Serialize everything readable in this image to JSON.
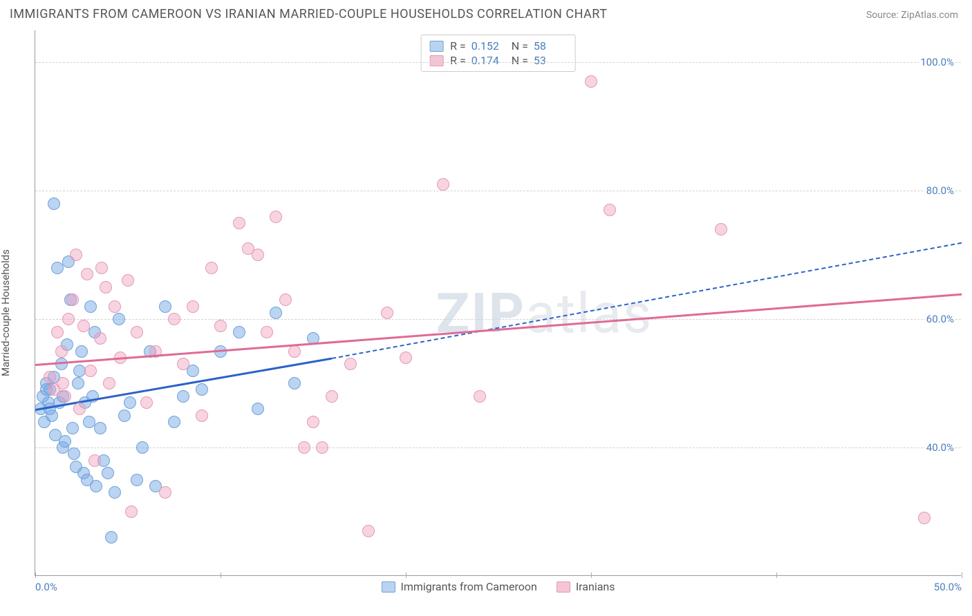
{
  "title": "IMMIGRANTS FROM CAMEROON VS IRANIAN MARRIED-COUPLE HOUSEHOLDS CORRELATION CHART",
  "source_label": "Source:",
  "source_value": "ZipAtlas.com",
  "ylabel": "Married-couple Households",
  "watermark_bold": "ZIP",
  "watermark_rest": "atlas",
  "xlim": [
    0,
    50
  ],
  "ylim": [
    20,
    105
  ],
  "yticks": [
    40,
    60,
    80,
    100
  ],
  "ytick_labels": [
    "40.0%",
    "60.0%",
    "80.0%",
    "100.0%"
  ],
  "xticks": [
    0,
    10,
    20,
    30,
    40,
    50
  ],
  "xtick_labels": [
    "0.0%",
    "",
    "",
    "",
    "",
    "50.0%"
  ],
  "grid_color": "#d0d0d0",
  "colors": {
    "blue_fill": "rgba(120,170,230,0.5)",
    "blue_stroke": "#6fa0d8",
    "blue_swatch_fill": "#b9d4f0",
    "blue_swatch_stroke": "#6fa0d8",
    "blue_trend": "#2a62c9",
    "pink_fill": "rgba(240,160,190,0.45)",
    "pink_stroke": "#e498b2",
    "pink_swatch_fill": "#f5c5d5",
    "pink_swatch_stroke": "#e498b2",
    "pink_trend": "#e06a93",
    "value_text": "#4a7ebb"
  },
  "legend_top": [
    {
      "swatch": "blue",
      "r_label": "R =",
      "r": "0.152",
      "n_label": "N =",
      "n": "58"
    },
    {
      "swatch": "pink",
      "r_label": "R =",
      "r": "0.174",
      "n_label": "N =",
      "n": "53"
    }
  ],
  "legend_bottom": [
    {
      "swatch": "blue",
      "label": "Immigrants from Cameroon"
    },
    {
      "swatch": "pink",
      "label": "Iranians"
    }
  ],
  "series": [
    {
      "name": "cameroon",
      "color_key": "blue",
      "trend": {
        "x0": 0,
        "y0": 46,
        "x_solid_end": 16,
        "y_solid_end": 54,
        "x_dash_end": 50,
        "y_dash_end": 72
      },
      "points": [
        [
          0.3,
          46
        ],
        [
          0.4,
          48
        ],
        [
          0.5,
          44
        ],
        [
          0.6,
          50
        ],
        [
          0.7,
          47
        ],
        [
          0.8,
          49
        ],
        [
          0.9,
          45
        ],
        [
          1.0,
          78
        ],
        [
          1.1,
          42
        ],
        [
          1.2,
          68
        ],
        [
          1.3,
          47
        ],
        [
          1.4,
          53
        ],
        [
          1.5,
          40
        ],
        [
          1.6,
          41
        ],
        [
          1.7,
          56
        ],
        [
          1.8,
          69
        ],
        [
          1.9,
          63
        ],
        [
          2.0,
          43
        ],
        [
          2.1,
          39
        ],
        [
          2.2,
          37
        ],
        [
          2.3,
          50
        ],
        [
          2.5,
          55
        ],
        [
          2.6,
          36
        ],
        [
          2.7,
          47
        ],
        [
          2.8,
          35
        ],
        [
          2.9,
          44
        ],
        [
          3.0,
          62
        ],
        [
          3.2,
          58
        ],
        [
          3.3,
          34
        ],
        [
          3.5,
          43
        ],
        [
          3.7,
          38
        ],
        [
          3.9,
          36
        ],
        [
          4.1,
          26
        ],
        [
          4.3,
          33
        ],
        [
          4.5,
          60
        ],
        [
          4.8,
          45
        ],
        [
          5.1,
          47
        ],
        [
          5.5,
          35
        ],
        [
          5.8,
          40
        ],
        [
          6.2,
          55
        ],
        [
          6.5,
          34
        ],
        [
          7.0,
          62
        ],
        [
          7.5,
          44
        ],
        [
          8.0,
          48
        ],
        [
          8.5,
          52
        ],
        [
          9.0,
          49
        ],
        [
          10.0,
          55
        ],
        [
          11.0,
          58
        ],
        [
          12.0,
          46
        ],
        [
          13.0,
          61
        ],
        [
          14.0,
          50
        ],
        [
          15.0,
          57
        ],
        [
          3.1,
          48
        ],
        [
          2.4,
          52
        ],
        [
          1.0,
          51
        ],
        [
          0.6,
          49
        ],
        [
          0.8,
          46
        ],
        [
          1.5,
          48
        ]
      ]
    },
    {
      "name": "iranians",
      "color_key": "pink",
      "trend": {
        "x0": 0,
        "y0": 53,
        "x_solid_end": 50,
        "y_solid_end": 64
      },
      "points": [
        [
          0.8,
          51
        ],
        [
          1.0,
          49
        ],
        [
          1.2,
          58
        ],
        [
          1.4,
          55
        ],
        [
          1.6,
          48
        ],
        [
          1.8,
          60
        ],
        [
          2.0,
          63
        ],
        [
          2.2,
          70
        ],
        [
          2.4,
          46
        ],
        [
          2.6,
          59
        ],
        [
          2.8,
          67
        ],
        [
          3.0,
          52
        ],
        [
          3.2,
          38
        ],
        [
          3.5,
          57
        ],
        [
          3.8,
          65
        ],
        [
          4.0,
          50
        ],
        [
          4.3,
          62
        ],
        [
          4.6,
          54
        ],
        [
          5.0,
          66
        ],
        [
          5.5,
          58
        ],
        [
          6.0,
          47
        ],
        [
          6.5,
          55
        ],
        [
          7.0,
          33
        ],
        [
          7.5,
          60
        ],
        [
          8.0,
          53
        ],
        [
          8.5,
          62
        ],
        [
          9.0,
          45
        ],
        [
          10.0,
          59
        ],
        [
          11.0,
          75
        ],
        [
          11.5,
          71
        ],
        [
          12.0,
          70
        ],
        [
          12.5,
          58
        ],
        [
          13.0,
          76
        ],
        [
          13.5,
          63
        ],
        [
          14.0,
          55
        ],
        [
          14.5,
          40
        ],
        [
          15.0,
          44
        ],
        [
          15.5,
          40
        ],
        [
          16.0,
          48
        ],
        [
          17.0,
          53
        ],
        [
          18.0,
          27
        ],
        [
          19.0,
          61
        ],
        [
          20.0,
          54
        ],
        [
          22.0,
          81
        ],
        [
          24.0,
          48
        ],
        [
          30.0,
          97
        ],
        [
          31.0,
          77
        ],
        [
          37.0,
          74
        ],
        [
          48.0,
          29
        ],
        [
          1.5,
          50
        ],
        [
          3.6,
          68
        ],
        [
          5.2,
          30
        ],
        [
          9.5,
          68
        ]
      ]
    }
  ]
}
